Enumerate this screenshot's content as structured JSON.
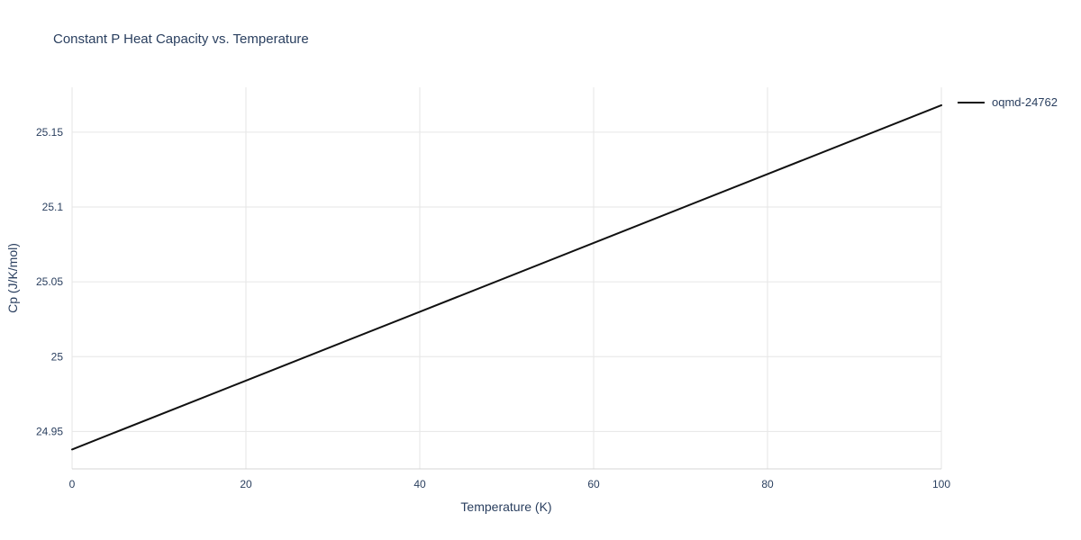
{
  "style": {
    "text_color": "#2a3f5f",
    "grid_color": "#e6e6e6",
    "axis_line_color": "#d4d4d4",
    "background_color": "#ffffff"
  },
  "chart_data": {
    "type": "line",
    "title": "Constant P Heat Capacity vs. Temperature",
    "xlabel": "Temperature (K)",
    "ylabel": "Cp (J/K/mol)",
    "xlim": [
      0,
      100
    ],
    "ylim": [
      24.925,
      25.18
    ],
    "x_ticks": [
      0,
      20,
      40,
      60,
      80,
      100
    ],
    "y_ticks": [
      24.95,
      25,
      25.05,
      25.1,
      25.15
    ],
    "grid": true,
    "legend_position": "top-right-outside",
    "series": [
      {
        "name": "oqmd-24762",
        "color": "#111111",
        "x": [
          0,
          20,
          40,
          60,
          80,
          100
        ],
        "y": [
          24.938,
          24.984,
          25.03,
          25.076,
          25.122,
          25.168
        ]
      }
    ]
  }
}
